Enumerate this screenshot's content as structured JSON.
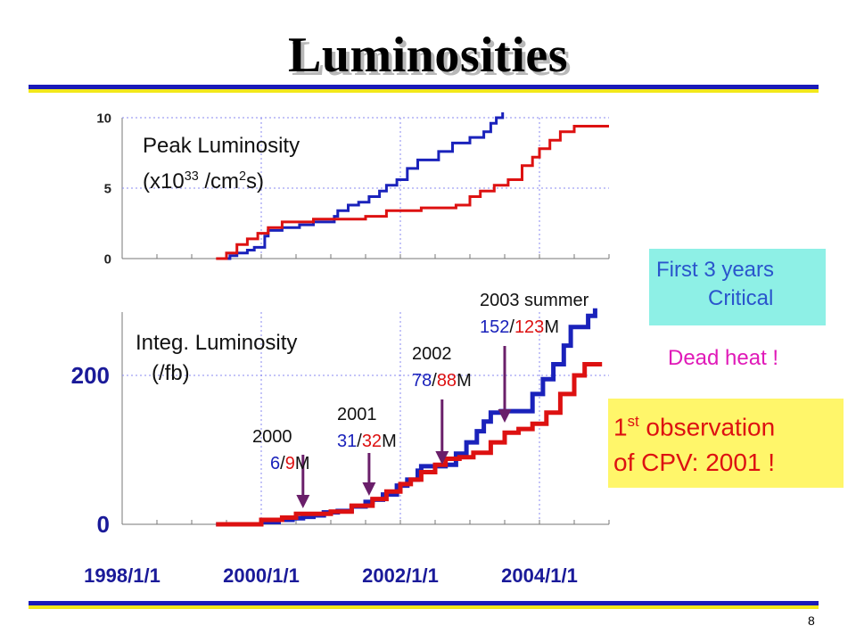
{
  "slide": {
    "title": "Luminosities",
    "page_number": "8"
  },
  "labels": {
    "peak_line1": "Peak Luminosity",
    "peak_unit_pre": "(x10",
    "peak_unit_exp": "33",
    "peak_unit_mid": " /cm",
    "peak_unit_exp2": "2",
    "peak_unit_post": "s)",
    "integ_line1": "Integ. Luminosity",
    "integ_line2": "(/fb)"
  },
  "annotations": [
    {
      "year": "2000",
      "blue": "6",
      "red": "9",
      "suffix": "M"
    },
    {
      "year": "2001",
      "blue": "31",
      "red": "32",
      "suffix": "M"
    },
    {
      "year": "2002",
      "blue": "78",
      "red": "88",
      "suffix": "M"
    },
    {
      "year": "2003 summer",
      "blue": "152",
      "red": "123",
      "suffix": "M"
    }
  ],
  "boxes": {
    "critical_line1": "First 3 years",
    "critical_line2": "Critical",
    "dead_heat": "Dead heat !",
    "cpv_pre": "1",
    "cpv_sup": "st",
    "cpv_line1_post": " observation",
    "cpv_line2": "of CPV: 2001 !"
  },
  "colors": {
    "blue_series": "#1a22bb",
    "red_series": "#dd1111",
    "arrow": "#6a1f6a",
    "grid": "#8a8af0"
  },
  "chart_data": [
    {
      "type": "line",
      "title": "",
      "ylabel": "Peak Luminosity (x10^33 /cm^2s)",
      "x_axis": "date (years)",
      "xlim": [
        1998.0,
        2005.0
      ],
      "ylim": [
        0,
        10
      ],
      "y_ticks": [
        0,
        5,
        10
      ],
      "x_gridlines": [
        2000.0,
        2002.0,
        2004.0
      ],
      "series": [
        {
          "color": "blue",
          "points": [
            [
              1999.47,
              0
            ],
            [
              1999.55,
              0.2
            ],
            [
              1999.65,
              0.4
            ],
            [
              1999.8,
              0.6
            ],
            [
              1999.9,
              0.8
            ],
            [
              2000.05,
              1.6
            ],
            [
              2000.1,
              2.0
            ],
            [
              2000.3,
              2.2
            ],
            [
              2000.55,
              2.4
            ],
            [
              2000.75,
              2.6
            ],
            [
              2001.05,
              3.0
            ],
            [
              2001.1,
              3.4
            ],
            [
              2001.25,
              3.8
            ],
            [
              2001.4,
              4.0
            ],
            [
              2001.55,
              4.4
            ],
            [
              2001.7,
              4.8
            ],
            [
              2001.8,
              5.2
            ],
            [
              2001.95,
              5.6
            ],
            [
              2002.1,
              6.4
            ],
            [
              2002.25,
              7.0
            ],
            [
              2002.55,
              7.6
            ],
            [
              2002.75,
              8.2
            ],
            [
              2003.0,
              8.6
            ],
            [
              2003.2,
              9.0
            ],
            [
              2003.3,
              9.6
            ],
            [
              2003.38,
              10.0
            ],
            [
              2003.47,
              10.5
            ]
          ]
        },
        {
          "color": "red",
          "points": [
            [
              1999.35,
              0
            ],
            [
              1999.5,
              0.4
            ],
            [
              1999.65,
              1.0
            ],
            [
              1999.8,
              1.4
            ],
            [
              1999.95,
              1.8
            ],
            [
              2000.1,
              2.2
            ],
            [
              2000.3,
              2.6
            ],
            [
              2000.75,
              2.8
            ],
            [
              2001.5,
              3.0
            ],
            [
              2001.8,
              3.4
            ],
            [
              2002.3,
              3.6
            ],
            [
              2002.8,
              3.8
            ],
            [
              2003.0,
              4.4
            ],
            [
              2003.15,
              4.8
            ],
            [
              2003.35,
              5.2
            ],
            [
              2003.55,
              5.6
            ],
            [
              2003.75,
              6.6
            ],
            [
              2003.9,
              7.2
            ],
            [
              2004.0,
              7.8
            ],
            [
              2004.15,
              8.4
            ],
            [
              2004.3,
              9.0
            ],
            [
              2004.5,
              9.4
            ],
            [
              2005.0,
              9.4
            ]
          ]
        }
      ]
    },
    {
      "type": "line",
      "title": "",
      "ylabel": "Integ. Luminosity (/fb)",
      "x_axis": "date",
      "xlim": [
        1998.0,
        2005.0
      ],
      "ylim": [
        0,
        285
      ],
      "y_ticks": [
        0,
        200
      ],
      "x_tick_labels": [
        "1998/1/1",
        "2000/1/1",
        "2002/1/1",
        "2004/1/1"
      ],
      "x_tick_values": [
        1998.0,
        2000.0,
        2002.0,
        2004.0
      ],
      "series": [
        {
          "color": "blue",
          "points": [
            [
              1999.35,
              0
            ],
            [
              1999.8,
              0
            ],
            [
              2000.0,
              3
            ],
            [
              2000.25,
              6
            ],
            [
              2000.45,
              8
            ],
            [
              2000.6,
              10
            ],
            [
              2000.75,
              12
            ],
            [
              2000.9,
              16
            ],
            [
              2001.1,
              18
            ],
            [
              2001.3,
              24
            ],
            [
              2001.5,
              30
            ],
            [
              2001.6,
              33
            ],
            [
              2001.75,
              40
            ],
            [
              2001.95,
              52
            ],
            [
              2002.1,
              60
            ],
            [
              2002.25,
              72
            ],
            [
              2002.3,
              78
            ],
            [
              2002.55,
              78
            ],
            [
              2002.65,
              80
            ],
            [
              2002.8,
              95
            ],
            [
              2002.95,
              110
            ],
            [
              2003.1,
              125
            ],
            [
              2003.2,
              138
            ],
            [
              2003.3,
              150
            ],
            [
              2003.45,
              152
            ],
            [
              2003.75,
              152
            ],
            [
              2003.9,
              175
            ],
            [
              2004.05,
              195
            ],
            [
              2004.2,
              215
            ],
            [
              2004.35,
              240
            ],
            [
              2004.45,
              265
            ],
            [
              2004.6,
              265
            ],
            [
              2004.7,
              280
            ],
            [
              2004.8,
              290
            ]
          ]
        },
        {
          "color": "red",
          "points": [
            [
              1999.35,
              0
            ],
            [
              1999.8,
              0
            ],
            [
              2000.0,
              6
            ],
            [
              2000.3,
              9
            ],
            [
              2000.5,
              14
            ],
            [
              2000.75,
              14
            ],
            [
              2001.0,
              17
            ],
            [
              2001.3,
              25
            ],
            [
              2001.6,
              34
            ],
            [
              2001.8,
              44
            ],
            [
              2002.0,
              54
            ],
            [
              2002.15,
              60
            ],
            [
              2002.3,
              70
            ],
            [
              2002.5,
              80
            ],
            [
              2002.65,
              88
            ],
            [
              2002.85,
              90
            ],
            [
              2003.05,
              96
            ],
            [
              2003.3,
              110
            ],
            [
              2003.5,
              123
            ],
            [
              2003.7,
              128
            ],
            [
              2003.9,
              135
            ],
            [
              2004.1,
              150
            ],
            [
              2004.3,
              175
            ],
            [
              2004.5,
              200
            ],
            [
              2004.65,
              215
            ],
            [
              2004.9,
              215
            ]
          ]
        }
      ]
    }
  ]
}
